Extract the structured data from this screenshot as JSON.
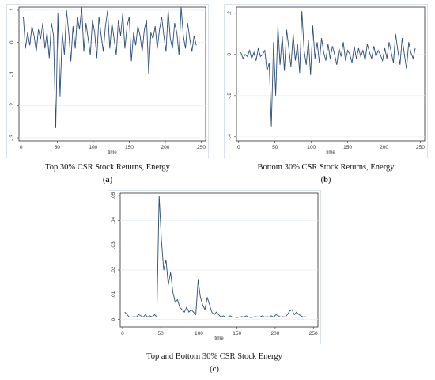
{
  "panels": [
    {
      "caption": "Top 30% CSR Stock Returns, Energy",
      "letter": "a",
      "xlabel": "time",
      "xticks": [
        0,
        50,
        100,
        150,
        200,
        250
      ],
      "yticks": [
        -0.3,
        -0.2,
        -0.1,
        0,
        0.1
      ],
      "ytick_labels": [
        "-.3",
        "-.2",
        "-.1",
        "0",
        ".1"
      ]
    },
    {
      "caption": "Bottom 30% CSR Stock Returns, Energy",
      "letter": "b",
      "xlabel": "time",
      "xticks": [
        0,
        50,
        100,
        150,
        200,
        250
      ],
      "yticks": [
        -0.4,
        -0.2,
        0,
        0.2
      ],
      "ytick_labels": [
        "-.4",
        "-.2",
        "0",
        ".2"
      ]
    },
    {
      "caption": "Top and Bottom 30% CSR Stock Energy",
      "letter": "c",
      "xlabel": "time",
      "xticks": [
        0,
        50,
        100,
        150,
        200,
        250
      ],
      "yticks": [
        0,
        0.01,
        0.02,
        0.03,
        0.04,
        0.05
      ],
      "ytick_labels": [
        "0",
        ".01",
        ".02",
        ".03",
        ".04",
        ".05"
      ]
    }
  ],
  "colors": {
    "line": "#2d4d73",
    "frame": "#d9e2ea",
    "grid": "#e5edf3"
  },
  "chart_data": [
    {
      "type": "line",
      "caption": "Top 30% CSR Stock Returns, Energy",
      "xlabel": "time",
      "ylabel": "",
      "xlim": [
        -3,
        256
      ],
      "ylim": [
        -0.31,
        0.11
      ],
      "grid": true,
      "x": [
        3,
        6,
        9,
        12,
        15,
        18,
        21,
        24,
        27,
        30,
        33,
        36,
        39,
        42,
        45,
        48,
        51,
        54,
        57,
        60,
        63,
        66,
        69,
        72,
        75,
        78,
        81,
        84,
        87,
        90,
        93,
        96,
        99,
        102,
        105,
        108,
        111,
        114,
        117,
        120,
        123,
        126,
        129,
        132,
        135,
        138,
        141,
        144,
        147,
        150,
        153,
        156,
        159,
        162,
        165,
        168,
        171,
        174,
        177,
        180,
        183,
        186,
        189,
        192,
        195,
        198,
        201,
        204,
        207,
        210,
        213,
        216,
        219,
        222,
        225,
        228,
        231,
        234,
        237,
        240,
        243
      ],
      "series": [
        {
          "values": [
            0.08,
            -0.02,
            0.03,
            -0.01,
            0.05,
            0.02,
            -0.03,
            0.04,
            0.01,
            0.06,
            -0.02,
            0.03,
            -0.05,
            0.06,
            0.02,
            -0.27,
            0.09,
            -0.17,
            0.03,
            -0.04,
            0.1,
            0.03,
            -0.06,
            0.05,
            -0.02,
            0.08,
            0.04,
            0.11,
            -0.03,
            0.06,
            0.01,
            -0.04,
            0.07,
            0.03,
            -0.05,
            0.08,
            0.02,
            -0.03,
            0.05,
            0.1,
            -0.02,
            0.06,
            0.01,
            -0.04,
            0.07,
            0.02,
            0.09,
            -0.02,
            0.05,
            0.08,
            -0.06,
            0.03,
            -0.01,
            0.05,
            0.02,
            -0.03,
            0.04,
            0.07,
            -0.1,
            0.03,
            0.01,
            0.05,
            -0.02,
            0.04,
            0.08,
            0.02,
            -0.03,
            0.1,
            0.01,
            -0.02,
            0.06,
            0.03,
            -0.04,
            0.11,
            0.02,
            -0.02,
            0.06,
            0.01,
            -0.03,
            0.02,
            -0.01
          ]
        }
      ]
    },
    {
      "type": "line",
      "caption": "Bottom 30% CSR Stock Returns, Energy",
      "xlabel": "time",
      "ylabel": "",
      "xlim": [
        -3,
        256
      ],
      "ylim": [
        -0.42,
        0.23
      ],
      "grid": true,
      "x": [
        3,
        6,
        9,
        12,
        15,
        18,
        21,
        24,
        27,
        30,
        33,
        36,
        39,
        42,
        45,
        48,
        51,
        54,
        57,
        60,
        63,
        66,
        69,
        72,
        75,
        78,
        81,
        84,
        87,
        90,
        93,
        96,
        99,
        102,
        105,
        108,
        111,
        114,
        117,
        120,
        123,
        126,
        129,
        132,
        135,
        138,
        141,
        144,
        147,
        150,
        153,
        156,
        159,
        162,
        165,
        168,
        171,
        174,
        177,
        180,
        183,
        186,
        189,
        192,
        195,
        198,
        201,
        204,
        207,
        210,
        213,
        216,
        219,
        222,
        225,
        228,
        231,
        234,
        237,
        240,
        243
      ],
      "series": [
        {
          "values": [
            0.01,
            -0.02,
            0.0,
            -0.01,
            0.02,
            -0.02,
            0.01,
            -0.03,
            0.03,
            -0.01,
            0.0,
            0.02,
            -0.08,
            -0.04,
            -0.35,
            0.06,
            -0.2,
            0.14,
            -0.05,
            0.09,
            -0.08,
            0.12,
            0.03,
            -0.06,
            0.1,
            -0.03,
            0.05,
            -0.09,
            0.21,
            0.02,
            -0.05,
            0.07,
            -0.1,
            0.14,
            -0.02,
            0.06,
            -0.04,
            0.08,
            0.01,
            -0.03,
            0.05,
            -0.02,
            0.04,
            0.0,
            -0.05,
            0.03,
            -0.01,
            0.06,
            -0.03,
            0.02,
            0.0,
            -0.04,
            0.04,
            -0.02,
            0.03,
            -0.01,
            0.02,
            -0.03,
            0.05,
            0.01,
            -0.02,
            0.04,
            -0.01,
            0.02,
            0.0,
            -0.03,
            0.03,
            -0.02,
            0.06,
            0.01,
            -0.04,
            0.1,
            0.02,
            -0.05,
            0.08,
            0.0,
            -0.07,
            0.06,
            0.01,
            -0.02,
            0.03
          ]
        }
      ]
    },
    {
      "type": "line",
      "caption": "Top and Bottom 30% CSR Stock Energy",
      "xlabel": "time",
      "ylabel": "",
      "xlim": [
        -3,
        256
      ],
      "ylim": [
        -0.003,
        0.051
      ],
      "grid": true,
      "x": [
        3,
        6,
        9,
        12,
        15,
        18,
        21,
        24,
        27,
        30,
        33,
        36,
        39,
        42,
        45,
        48,
        51,
        54,
        57,
        60,
        63,
        66,
        69,
        72,
        75,
        78,
        81,
        84,
        87,
        90,
        93,
        96,
        99,
        102,
        105,
        108,
        111,
        114,
        117,
        120,
        123,
        126,
        129,
        132,
        135,
        138,
        141,
        144,
        147,
        150,
        153,
        156,
        159,
        162,
        165,
        168,
        171,
        174,
        177,
        180,
        183,
        186,
        189,
        192,
        195,
        198,
        201,
        204,
        207,
        210,
        213,
        216,
        219,
        222,
        225,
        228,
        231,
        234,
        237,
        240
      ],
      "series": [
        {
          "values": [
            0.003,
            0.002,
            0.001,
            0.001,
            0.0012,
            0.001,
            0.002,
            0.0015,
            0.001,
            0.002,
            0.001,
            0.0015,
            0.001,
            0.002,
            0.001,
            0.05,
            0.032,
            0.02,
            0.024,
            0.014,
            0.019,
            0.011,
            0.007,
            0.008,
            0.005,
            0.004,
            0.003,
            0.005,
            0.003,
            0.004,
            0.003,
            0.002,
            0.016,
            0.009,
            0.006,
            0.004,
            0.009,
            0.006,
            0.003,
            0.002,
            0.003,
            0.002,
            0.001,
            0.0015,
            0.001,
            0.001,
            0.0015,
            0.001,
            0.001,
            0.0008,
            0.001,
            0.0012,
            0.001,
            0.0015,
            0.001,
            0.0008,
            0.001,
            0.0012,
            0.001,
            0.001,
            0.0015,
            0.001,
            0.0012,
            0.001,
            0.0015,
            0.001,
            0.002,
            0.0015,
            0.001,
            0.0012,
            0.001,
            0.002,
            0.0035,
            0.004,
            0.002,
            0.003,
            0.002,
            0.0015,
            0.001,
            0.0012
          ]
        }
      ]
    }
  ]
}
